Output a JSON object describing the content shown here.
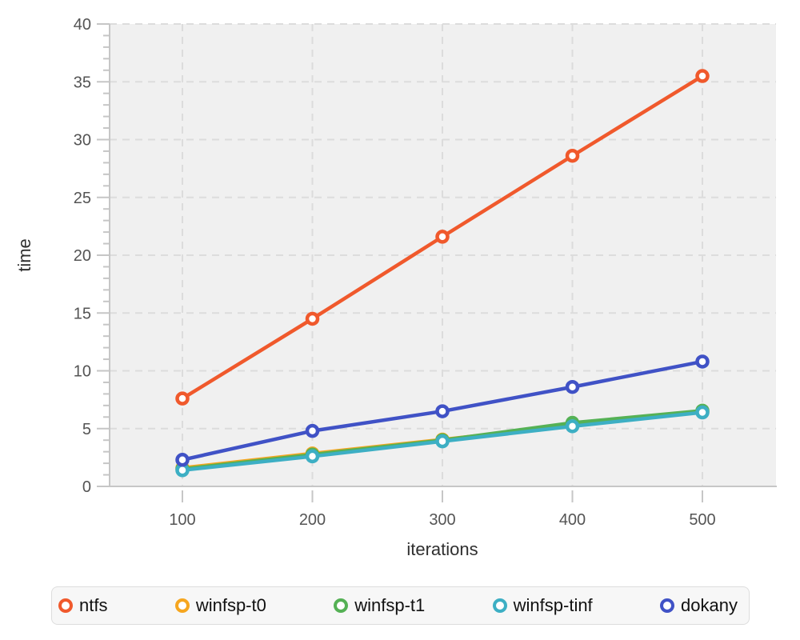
{
  "figure": {
    "background": "#ffffff",
    "plot_background": "#f0f0f0",
    "grid_color": "#dcdcdc",
    "axis_color": "#c6c6c6",
    "tick_label_color": "#545454",
    "axis_title_color": "#2f2f2f"
  },
  "chart_data": {
    "type": "line",
    "title": "",
    "xlabel": "iterations",
    "ylabel": "time",
    "x": [
      100,
      200,
      300,
      400,
      500
    ],
    "xticks": [
      100,
      200,
      300,
      400,
      500
    ],
    "yticks": [
      0,
      5,
      10,
      15,
      20,
      25,
      30,
      35,
      40
    ],
    "y_minor_tick_step": 1,
    "xlim": [
      44,
      557
    ],
    "ylim": [
      0,
      40
    ],
    "grid": true,
    "grid_style": "dashed",
    "legend_position": "bottom",
    "marker": "open-circle",
    "series": [
      {
        "name": "ntfs",
        "color": "#f0592c",
        "values": [
          7.6,
          14.5,
          21.6,
          28.6,
          35.5
        ]
      },
      {
        "name": "winfsp-t0",
        "color": "#f6a61f",
        "values": [
          1.6,
          2.85,
          4.05,
          5.3,
          6.45
        ]
      },
      {
        "name": "winfsp-t1",
        "color": "#55b155",
        "values": [
          1.5,
          2.75,
          4.0,
          5.5,
          6.55
        ]
      },
      {
        "name": "winfsp-tinf",
        "color": "#3dafc4",
        "values": [
          1.4,
          2.6,
          3.9,
          5.2,
          6.4
        ]
      },
      {
        "name": "dokany",
        "color": "#4052c6",
        "values": [
          2.3,
          4.8,
          6.5,
          8.6,
          10.8
        ]
      }
    ]
  }
}
